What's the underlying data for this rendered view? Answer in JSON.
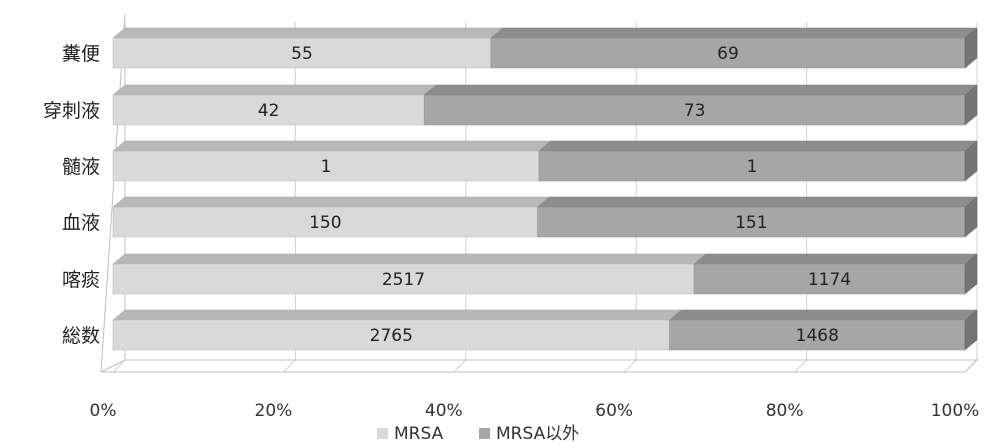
{
  "chart_data": {
    "type": "bar",
    "orientation": "horizontal",
    "stacked": "percent",
    "categories": [
      "糞便",
      "穿刺液",
      "髄液",
      "血液",
      "喀痰",
      "総数"
    ],
    "series": [
      {
        "name": "MRSA",
        "values": [
          55,
          42,
          1,
          150,
          2517,
          2765
        ],
        "color": "#d9d9d9"
      },
      {
        "name": "MRSA以外",
        "values": [
          69,
          73,
          1,
          151,
          1174,
          1468
        ],
        "color": "#a6a6a6"
      }
    ],
    "x_ticks": [
      "0%",
      "20%",
      "40%",
      "60%",
      "80%",
      "100%"
    ],
    "xlim": [
      0,
      100
    ],
    "grid": true,
    "legend_position": "bottom",
    "style": "3d"
  }
}
